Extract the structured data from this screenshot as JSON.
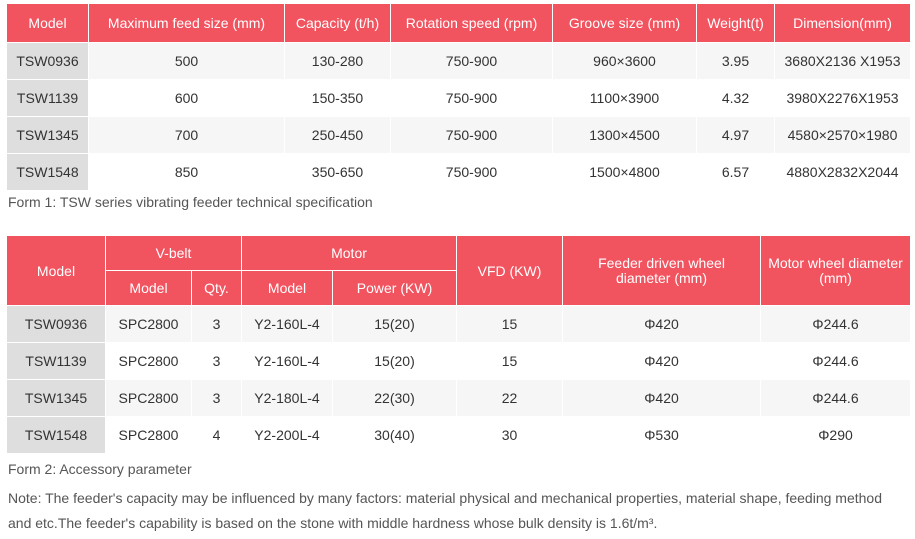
{
  "table1": {
    "headers": [
      "Model",
      "Maximum feed size (mm)",
      "Capacity (t/h)",
      "Rotation speed (rpm)",
      "Groove size (mm)",
      "Weight(t)",
      "Dimension(mm)"
    ],
    "rows": [
      [
        "TSW0936",
        "500",
        "130-280",
        "750-900",
        "960×3600",
        "3.95",
        "3680X2136 X1953"
      ],
      [
        "TSW1139",
        "600",
        "150-350",
        "750-900",
        "1100×3900",
        "4.32",
        "3980X2276X1953"
      ],
      [
        "TSW1345",
        "700",
        "250-450",
        "750-900",
        "1300×4500",
        "4.97",
        "4580×2570×1980"
      ],
      [
        "TSW1548",
        "850",
        "350-650",
        "750-900",
        "1500×4800",
        "6.57",
        "4880X2832X2044"
      ]
    ],
    "caption": "Form 1: TSW series vibrating feeder technical specification"
  },
  "table2": {
    "headers": {
      "model": "Model",
      "vbelt": "V-belt",
      "motor": "Motor",
      "vfd": "VFD (KW)",
      "feeder_wheel": "Feeder driven wheel diameter (mm)",
      "motor_wheel": "Motor wheel diameter (mm)",
      "vbelt_model": "Model",
      "vbelt_qty": "Qty.",
      "motor_model": "Model",
      "motor_power": "Power (KW)"
    },
    "rows": [
      [
        "TSW0936",
        "SPC2800",
        "3",
        "Y2-160L-4",
        "15(20)",
        "15",
        "Φ420",
        "Φ244.6"
      ],
      [
        "TSW1139",
        "SPC2800",
        "3",
        "Y2-160L-4",
        "15(20)",
        "15",
        "Φ420",
        "Φ244.6"
      ],
      [
        "TSW1345",
        "SPC2800",
        "3",
        "Y2-180L-4",
        "22(30)",
        "22",
        "Φ420",
        "Φ244.6"
      ],
      [
        "TSW1548",
        "SPC2800",
        "4",
        "Y2-200L-4",
        "30(40)",
        "30",
        "Φ530",
        "Φ290"
      ]
    ],
    "caption": "Form 2: Accessory parameter"
  },
  "note": "Note: The feeder's capacity may be influenced by many factors: material physical and mechanical properties, material shape, feeding method and etc.The feeder's capability is based on the stone with middle hardness whose bulk density is 1.6t/m³."
}
